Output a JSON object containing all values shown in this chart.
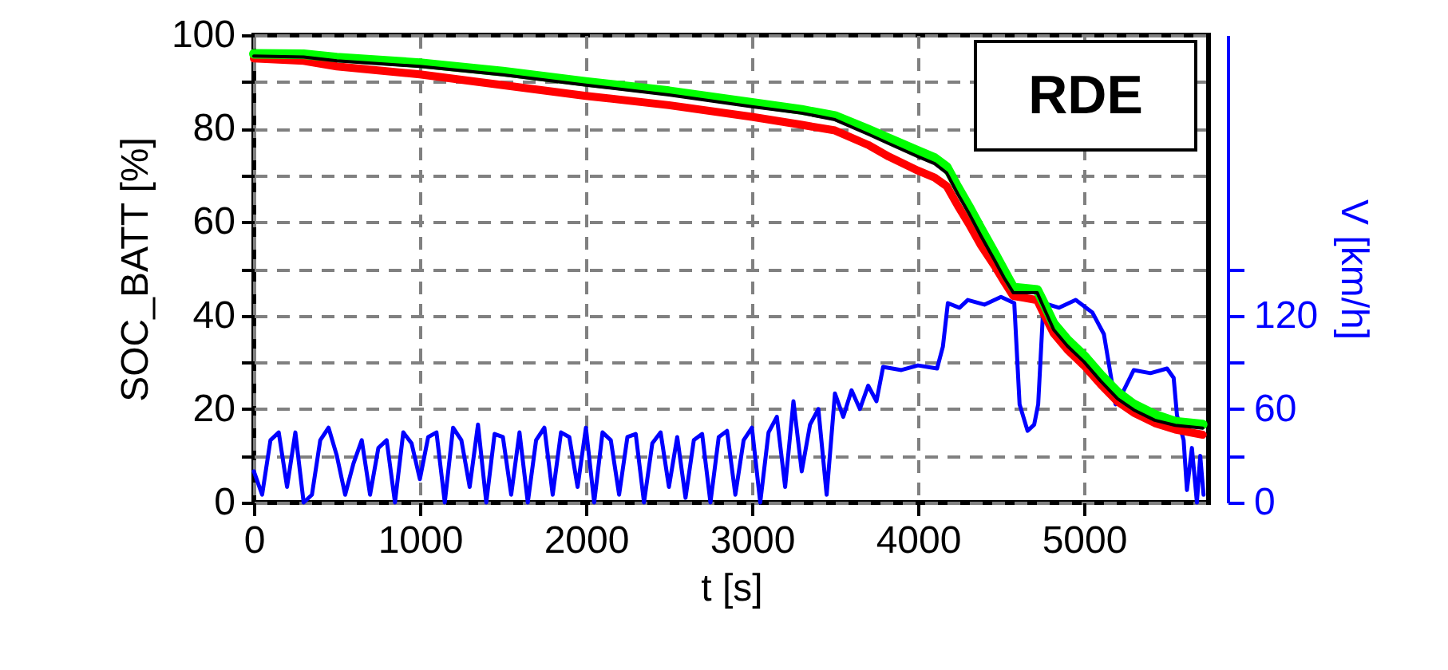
{
  "chart_data": {
    "type": "line",
    "xlabel": "t [s]",
    "ylabel": "SOC_BATT [%]",
    "y2label": "V [km/h]",
    "annotations": [
      "RDE"
    ],
    "xlim": [
      0,
      5750
    ],
    "xticks": [
      0,
      1000,
      2000,
      3000,
      4000,
      5000
    ],
    "ylim": [
      0,
      100
    ],
    "yticks": [
      0,
      {
        "value": 10,
        "label": null
      },
      20,
      {
        "value": 30,
        "label": null
      },
      40,
      {
        "value": 50,
        "label": null
      },
      60,
      {
        "value": 70,
        "label": null
      },
      80,
      {
        "value": 90,
        "label": null
      },
      100
    ],
    "y2lim": [
      0,
      300
    ],
    "y2ticks": [
      0,
      {
        "value": 30,
        "label": null
      },
      60,
      {
        "value": 90,
        "label": null
      },
      120,
      {
        "value": 150,
        "label": null
      }
    ],
    "grid": true,
    "series": [
      {
        "color": "#0000ff",
        "axis": "y2",
        "x": [
          0,
          50,
          100,
          150,
          200,
          250,
          300,
          350,
          400,
          450,
          500,
          550,
          600,
          650,
          700,
          750,
          800,
          850,
          900,
          950,
          1000,
          1050,
          1100,
          1150,
          1200,
          1250,
          1300,
          1350,
          1400,
          1450,
          1500,
          1550,
          1600,
          1650,
          1700,
          1750,
          1800,
          1850,
          1900,
          1950,
          2000,
          2050,
          2100,
          2150,
          2200,
          2250,
          2300,
          2350,
          2400,
          2450,
          2500,
          2550,
          2600,
          2650,
          2700,
          2750,
          2800,
          2850,
          2900,
          2950,
          3000,
          3050,
          3100,
          3150,
          3200,
          3250,
          3300,
          3350,
          3400,
          3450,
          3500,
          3550,
          3600,
          3650,
          3700,
          3750,
          3790,
          3900,
          4000,
          4115,
          4150,
          4180,
          4250,
          4300,
          4400,
          4500,
          4580,
          4612,
          4660,
          4700,
          4724,
          4756,
          4850,
          4950,
          5050,
          5120,
          5190,
          5230,
          5300,
          5400,
          5500,
          5540,
          5560,
          5600,
          5620,
          5650,
          5680,
          5700,
          5720
        ],
        "values": [
          20,
          5,
          40,
          45,
          10,
          45,
          0,
          5,
          40,
          48,
          30,
          5,
          25,
          40,
          5,
          35,
          40,
          0,
          45,
          38,
          15,
          42,
          45,
          0,
          48,
          40,
          10,
          50,
          0,
          44,
          42,
          5,
          45,
          0,
          40,
          48,
          5,
          45,
          42,
          10,
          48,
          0,
          45,
          40,
          5,
          42,
          44,
          0,
          38,
          45,
          10,
          42,
          3,
          40,
          44,
          0,
          42,
          46,
          5,
          40,
          48,
          0,
          45,
          55,
          10,
          65,
          20,
          50,
          60,
          5,
          70,
          55,
          72,
          60,
          75,
          65,
          87,
          85,
          88,
          86,
          100,
          128,
          125,
          130,
          127,
          132,
          128,
          63,
          46,
          50,
          63,
          128,
          125,
          130,
          122,
          108,
          63,
          70,
          85,
          83,
          86,
          80,
          56,
          40,
          8,
          35,
          0,
          30,
          5
        ]
      },
      {
        "color": "#ff0000",
        "x": [
          0,
          300,
          500,
          1000,
          1500,
          2000,
          2500,
          3000,
          3300,
          3500,
          3700,
          3824,
          4000,
          4100,
          4173,
          4240,
          4305,
          4380,
          4462,
          4520,
          4574,
          4640,
          4718,
          4760,
          4817,
          4900,
          5000,
          5100,
          5202,
          5300,
          5426,
          5550,
          5715
        ],
        "values": [
          95,
          94.5,
          93.3,
          91.6,
          89.3,
          87,
          85,
          82.5,
          80.8,
          79.6,
          76.5,
          74,
          71,
          69.5,
          67.7,
          63.5,
          59.7,
          55,
          50.6,
          47.2,
          44.2,
          43.8,
          43.3,
          40.2,
          36.2,
          32.7,
          29.3,
          25.3,
          21.6,
          19.2,
          17,
          15.6,
          14.5
        ]
      },
      {
        "color": "#00ff00",
        "x": [
          0,
          300,
          500,
          1000,
          1500,
          2000,
          2500,
          3000,
          3300,
          3500,
          3700,
          3824,
          4000,
          4100,
          4173,
          4240,
          4305,
          4380,
          4462,
          4520,
          4574,
          4718,
          4760,
          4817,
          4900,
          5000,
          5100,
          5202,
          5300,
          5426,
          5550,
          5715
        ],
        "values": [
          96,
          95.9,
          95.2,
          94,
          92.2,
          90,
          88,
          85.5,
          84,
          82.7,
          79.8,
          77.9,
          75.2,
          73.7,
          71.8,
          67.4,
          63.4,
          58.5,
          53.3,
          49.5,
          46,
          45.5,
          42.5,
          38.3,
          34.8,
          31.4,
          27.3,
          23.6,
          21,
          18.8,
          17.3,
          16.7
        ]
      },
      {
        "color": "#000000",
        "x": [
          0,
          300,
          500,
          1000,
          1500,
          2000,
          2500,
          3000,
          3300,
          3500,
          3700,
          3824,
          4000,
          4100,
          4173,
          4240,
          4305,
          4380,
          4462,
          4520,
          4574,
          4718,
          4760,
          4817,
          4900,
          5000,
          5100,
          5202,
          5300,
          5426,
          5550,
          5715
        ],
        "values": [
          95.5,
          95.3,
          94.5,
          93.3,
          91.5,
          89.3,
          87.2,
          84.7,
          83.3,
          81.9,
          78.8,
          76.8,
          74,
          72.5,
          70.5,
          66,
          62,
          57,
          51.8,
          48,
          44.9,
          44.9,
          41.5,
          37,
          33.5,
          30.1,
          26,
          22.2,
          19.8,
          17.6,
          16.5,
          15.9
        ]
      }
    ]
  }
}
